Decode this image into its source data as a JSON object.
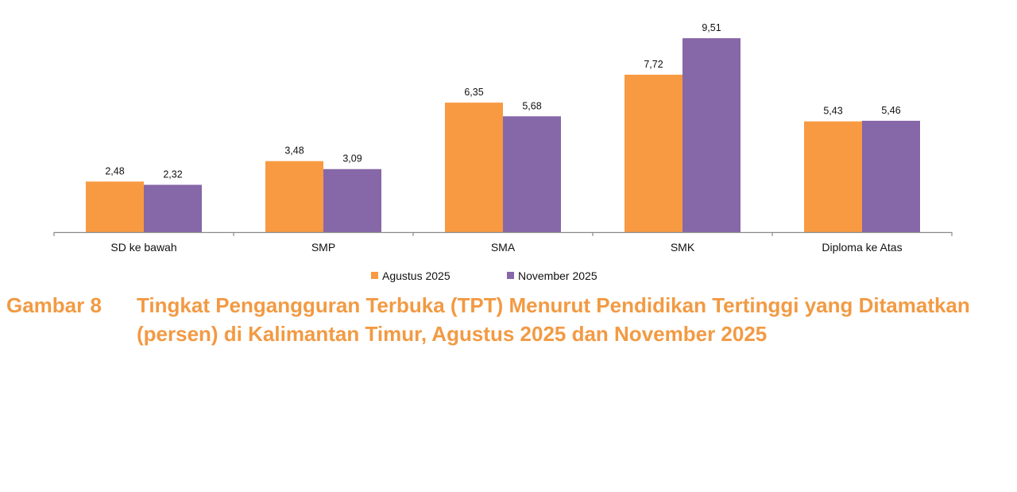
{
  "chart_data": {
    "type": "bar",
    "categories": [
      "SD ke bawah",
      "SMP",
      "SMA",
      "SMK",
      "Diploma ke Atas"
    ],
    "series": [
      {
        "name": "Agustus 2025",
        "color": "#f89a42",
        "values": [
          2.48,
          3.48,
          6.35,
          7.72,
          5.43
        ],
        "labels": [
          "2,48",
          "3,48",
          "6,35",
          "7,72",
          "5,43"
        ]
      },
      {
        "name": "November 2025",
        "color": "#8667a8",
        "values": [
          2.32,
          3.09,
          5.68,
          9.51,
          5.46
        ],
        "labels": [
          "2,32",
          "3,09",
          "5,68",
          "9,51",
          "5,46"
        ]
      }
    ],
    "ylim": [
      0,
      10
    ],
    "grid": false,
    "legend_position": "bottom"
  },
  "caption": {
    "number": "Gambar 8",
    "text": "Tingkat Pengangguran Terbuka (TPT) Menurut Pendidikan Tertinggi yang Ditamatkan (persen) di Kalimantan Timur, Agustus 2025 dan November 2025",
    "color": "#f29a43"
  }
}
